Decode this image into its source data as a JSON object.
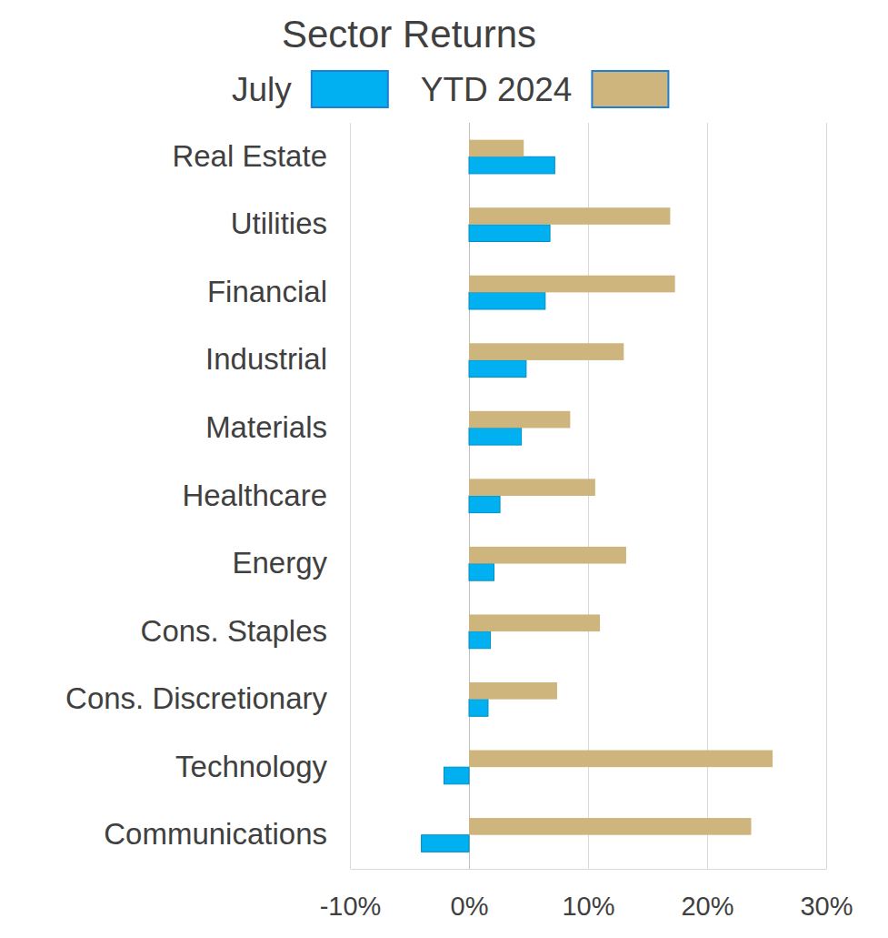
{
  "chart_data": {
    "type": "bar",
    "title": "Sector Returns",
    "orientation": "horizontal",
    "grid": true,
    "legend": "top",
    "categories": [
      "Real Estate",
      "Utilities",
      "Financial",
      "Industrial",
      "Materials",
      "Healthcare",
      "Energy",
      "Cons. Staples",
      "Cons. Discretionary",
      "Technology",
      "Communications"
    ],
    "series": [
      {
        "name": "July",
        "color": "#00b0f0",
        "values": [
          7.2,
          6.8,
          6.4,
          4.8,
          4.4,
          2.6,
          2.1,
          1.8,
          1.6,
          -2.1,
          -4.0
        ]
      },
      {
        "name": "YTD 2024",
        "color": "#cdb57d",
        "values": [
          4.6,
          16.9,
          17.3,
          13.0,
          8.5,
          10.6,
          13.2,
          11.0,
          7.4,
          25.5,
          23.7
        ]
      }
    ],
    "xlim": [
      -10,
      30
    ],
    "xticks": [
      {
        "value": -10,
        "label": "-10%"
      },
      {
        "value": 0,
        "label": "0%"
      },
      {
        "value": 10,
        "label": "10%"
      },
      {
        "value": 20,
        "label": "20%"
      },
      {
        "value": 30,
        "label": "30%"
      }
    ]
  }
}
